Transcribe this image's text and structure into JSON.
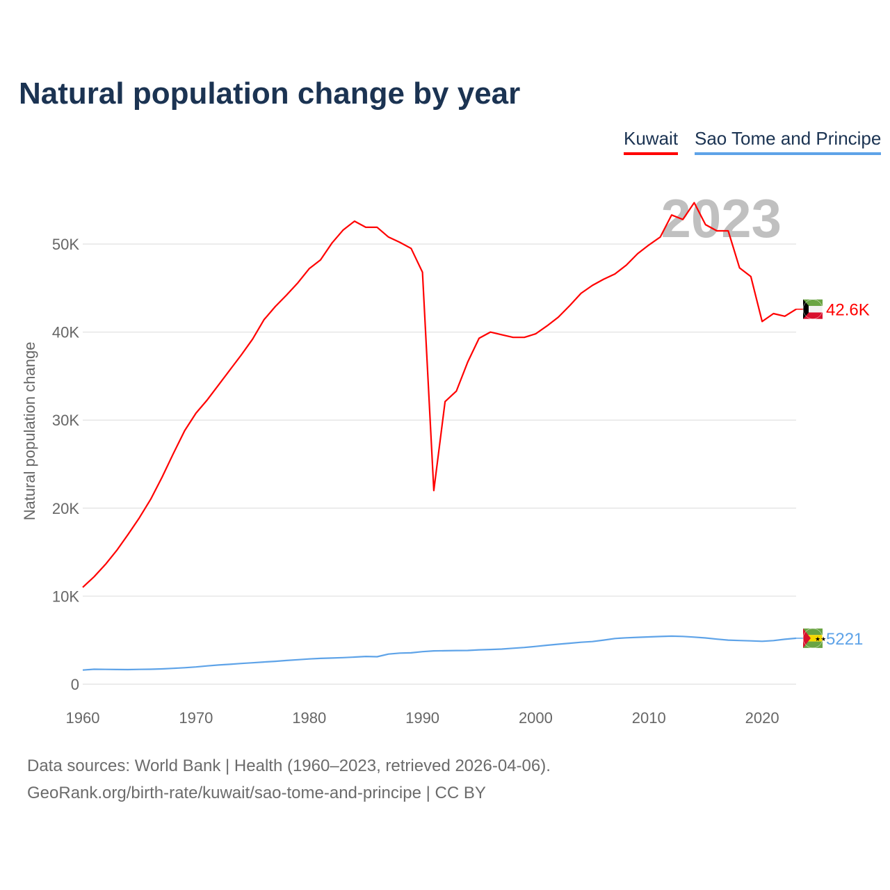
{
  "title": "Natural population change by year",
  "footer": {
    "line1": "Data sources: World Bank | Health (1960–2023, retrieved 2026-04-06).",
    "line2": "GeoRank.org/birth-rate/kuwait/sao-tome-and-principe | CC BY"
  },
  "chart_data": {
    "type": "line",
    "title": "Natural population change by year",
    "xlabel": "",
    "ylabel": "Natural population change",
    "year_watermark": "2023",
    "xlim": [
      1960,
      2023
    ],
    "ylim": [
      0,
      55000
    ],
    "x_ticks": [
      "1960",
      "1970",
      "1980",
      "1990",
      "2000",
      "2010",
      "2020"
    ],
    "y_ticks": [
      {
        "value": 0,
        "label": "0"
      },
      {
        "value": 10000,
        "label": "10K"
      },
      {
        "value": 20000,
        "label": "20K"
      },
      {
        "value": 30000,
        "label": "30K"
      },
      {
        "value": 40000,
        "label": "40K"
      },
      {
        "value": 50000,
        "label": "50K"
      }
    ],
    "grid": true,
    "legend_position": "top-right",
    "x": [
      1960,
      1961,
      1962,
      1963,
      1964,
      1965,
      1966,
      1967,
      1968,
      1969,
      1970,
      1971,
      1972,
      1973,
      1974,
      1975,
      1976,
      1977,
      1978,
      1979,
      1980,
      1981,
      1982,
      1983,
      1984,
      1985,
      1986,
      1987,
      1988,
      1989,
      1990,
      1991,
      1992,
      1993,
      1994,
      1995,
      1996,
      1997,
      1998,
      1999,
      2000,
      2001,
      2002,
      2003,
      2004,
      2005,
      2006,
      2007,
      2008,
      2009,
      2010,
      2011,
      2012,
      2013,
      2014,
      2015,
      2016,
      2017,
      2018,
      2019,
      2020,
      2021,
      2022,
      2023
    ],
    "series": [
      {
        "name": "Kuwait",
        "color": "#ff0000",
        "end_label": "42.6K",
        "values": [
          11000,
          12200,
          13600,
          15200,
          17000,
          18900,
          21000,
          23500,
          26200,
          28800,
          30800,
          32300,
          34000,
          35700,
          37400,
          39200,
          41400,
          42900,
          44200,
          45600,
          47200,
          48200,
          50100,
          51600,
          52600,
          51900,
          51900,
          50800,
          50200,
          49500,
          46800,
          22000,
          32100,
          33300,
          36600,
          39300,
          40000,
          39700,
          39400,
          39400,
          39800,
          40700,
          41700,
          43000,
          44400,
          45300,
          46000,
          46600,
          47600,
          48900,
          49900,
          50800,
          53300,
          52800,
          54700,
          52200,
          51500,
          51500,
          47300,
          46300,
          41200,
          42100,
          41800,
          42600
        ]
      },
      {
        "name": "Sao Tome and Principe",
        "color": "#5ea3e8",
        "end_label": "5221",
        "values": [
          1600,
          1700,
          1680,
          1670,
          1660,
          1680,
          1700,
          1740,
          1800,
          1870,
          1960,
          2080,
          2180,
          2260,
          2350,
          2430,
          2520,
          2600,
          2690,
          2780,
          2870,
          2930,
          2970,
          3020,
          3080,
          3150,
          3120,
          3420,
          3530,
          3560,
          3700,
          3780,
          3800,
          3820,
          3830,
          3900,
          3940,
          3990,
          4080,
          4170,
          4290,
          4420,
          4540,
          4650,
          4760,
          4840,
          5010,
          5190,
          5270,
          5320,
          5370,
          5420,
          5460,
          5430,
          5350,
          5250,
          5120,
          5010,
          4960,
          4920,
          4870,
          4950,
          5100,
          5221
        ]
      }
    ]
  }
}
